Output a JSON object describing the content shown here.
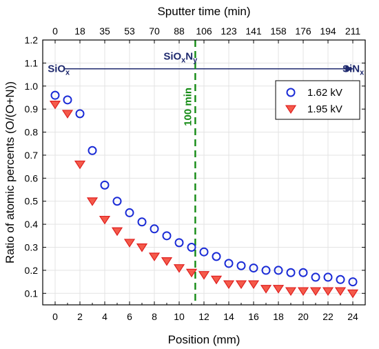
{
  "chart_data": {
    "type": "scatter",
    "xlabel": "Position (mm)",
    "ylabel": "Ratio of atomic percents (O/(O+N))",
    "top_xlabel": "Sputter time (min)",
    "xlim": [
      -1,
      25
    ],
    "ylim": [
      0.05,
      1.2
    ],
    "x_ticks": [
      0,
      2,
      4,
      6,
      8,
      10,
      12,
      14,
      16,
      18,
      20,
      22,
      24
    ],
    "y_ticks": [
      0.1,
      0.2,
      0.3,
      0.4,
      0.5,
      0.6,
      0.7,
      0.8,
      0.9,
      1.0,
      1.1,
      1.2
    ],
    "y_tick_labels": [
      "0.1",
      "0.2",
      "0.3",
      "0.4",
      "0.5",
      "0.6",
      "0.7",
      "0.8",
      "0.9",
      "1.0",
      "1.1",
      "1.2"
    ],
    "top_ticks": [
      {
        "x": 0,
        "label": "0"
      },
      {
        "x": 2,
        "label": "18"
      },
      {
        "x": 4,
        "label": "35"
      },
      {
        "x": 6,
        "label": "53"
      },
      {
        "x": 8,
        "label": "70"
      },
      {
        "x": 10,
        "label": "88"
      },
      {
        "x": 12,
        "label": "106"
      },
      {
        "x": 14,
        "label": "123"
      },
      {
        "x": 16,
        "label": "141"
      },
      {
        "x": 18,
        "label": "158"
      },
      {
        "x": 20,
        "label": "176"
      },
      {
        "x": 22,
        "label": "194"
      },
      {
        "x": 24,
        "label": "211"
      }
    ],
    "grid": true,
    "legend_position": "top-right",
    "series": [
      {
        "name": "1.62 kV",
        "marker": "circle",
        "color": "#1a2bd6",
        "x": [
          0,
          1,
          2,
          3,
          4,
          5,
          6,
          7,
          8,
          9,
          10,
          11,
          12,
          13,
          14,
          15,
          16,
          17,
          18,
          19,
          20,
          21,
          22,
          23,
          24
        ],
        "y": [
          0.96,
          0.94,
          0.88,
          0.72,
          0.57,
          0.5,
          0.45,
          0.41,
          0.38,
          0.35,
          0.32,
          0.3,
          0.28,
          0.26,
          0.23,
          0.22,
          0.21,
          0.2,
          0.2,
          0.19,
          0.19,
          0.17,
          0.17,
          0.16,
          0.15
        ]
      },
      {
        "name": "1.95 kV",
        "marker": "triangle-down",
        "color": "#e01f1f",
        "x": [
          0,
          1,
          2,
          3,
          4,
          5,
          6,
          7,
          8,
          9,
          10,
          11,
          12,
          13,
          14,
          15,
          16,
          17,
          18,
          19,
          20,
          21,
          22,
          23,
          24
        ],
        "y": [
          0.92,
          0.88,
          0.66,
          0.5,
          0.42,
          0.37,
          0.32,
          0.3,
          0.26,
          0.24,
          0.21,
          0.19,
          0.18,
          0.16,
          0.14,
          0.14,
          0.14,
          0.12,
          0.12,
          0.11,
          0.11,
          0.11,
          0.11,
          0.11,
          0.1
        ]
      }
    ],
    "annotations": {
      "left_label": "SiOx",
      "middle_label": "SiOxNy",
      "right_label": "SiNx",
      "vline_label": "100 min",
      "vline_x": 11.3,
      "arrow_y": 1.075,
      "arrow_color": "#1f2a6e",
      "vline_color": "#138a13"
    }
  }
}
